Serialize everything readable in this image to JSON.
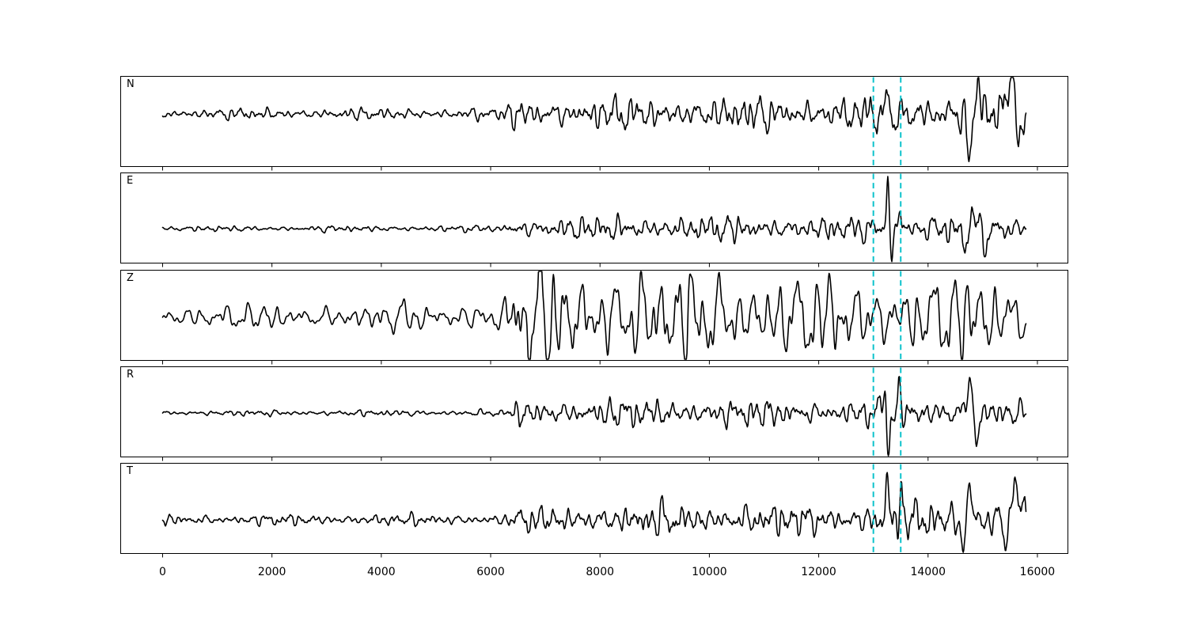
{
  "figure": {
    "background": "#ffffff"
  },
  "chart_data": {
    "type": "line",
    "kind": "seismic-waveform-multipanel",
    "title": "",
    "xlabel": "",
    "ylabel": "",
    "grid": false,
    "legend": null,
    "xlim": [
      -774,
      16565
    ],
    "xticks": [
      0,
      2000,
      4000,
      6000,
      8000,
      10000,
      12000,
      14000,
      16000
    ],
    "xtick_labels": [
      "0",
      "2000",
      "4000",
      "6000",
      "8000",
      "10000",
      "12000",
      "14000",
      "16000"
    ],
    "trace_style": {
      "color": "#000000",
      "width": 1.6,
      "x_start": 0,
      "x_end": 15790,
      "samples": 1500
    },
    "vlines": {
      "x": [
        13000,
        13500
      ],
      "color": "#0cc2cb",
      "dash": [
        7,
        4.6
      ],
      "width": 2
    },
    "amp_units": "px-half-amplitude",
    "noise_profiles": {
      "default": {
        "periods": [
          520,
          380,
          290,
          220,
          170,
          130,
          95,
          48
        ],
        "amps": [
          0.5,
          0.6,
          0.8,
          0.9,
          1.0,
          0.9,
          0.6,
          0.35
        ],
        "am_period": 2300,
        "am_depth": 0.35
      },
      "broad": {
        "periods": [
          650,
          480,
          360,
          280,
          230,
          180,
          130,
          80
        ],
        "amps": [
          0.5,
          0.7,
          0.9,
          1.0,
          1.0,
          0.7,
          0.5,
          0.35
        ],
        "am_period": 2600,
        "am_depth": 0.3
      }
    },
    "panels": [
      {
        "label": "N",
        "seed": 11,
        "profile": "default",
        "center_y": 48,
        "envelope": [
          [
            0,
            4
          ],
          [
            6200,
            4.5
          ],
          [
            6400,
            12
          ],
          [
            8000,
            12
          ],
          [
            10500,
            13
          ],
          [
            12600,
            13
          ],
          [
            13600,
            15
          ],
          [
            14300,
            17
          ],
          [
            15790,
            18
          ]
        ],
        "events": [
          [
            13265,
            39,
            45
          ],
          [
            13335,
            -28,
            45
          ],
          [
            14740,
            -55,
            50
          ],
          [
            14925,
            38,
            45
          ],
          [
            15480,
            26,
            150
          ],
          [
            15700,
            -20,
            70
          ]
        ]
      },
      {
        "label": "E",
        "seed": 23,
        "profile": "default",
        "center_y": 71,
        "envelope": [
          [
            0,
            2
          ],
          [
            6200,
            2.5
          ],
          [
            6400,
            8
          ],
          [
            9000,
            10
          ],
          [
            12600,
            9
          ],
          [
            13600,
            11
          ],
          [
            14400,
            12
          ],
          [
            15790,
            9
          ]
        ],
        "events": [
          [
            13265,
            58,
            32
          ],
          [
            13340,
            -30,
            35
          ],
          [
            13485,
            26,
            30
          ],
          [
            14690,
            -34,
            55
          ],
          [
            14830,
            30,
            60
          ],
          [
            15060,
            -20,
            70
          ]
        ]
      },
      {
        "label": "Z",
        "seed": 37,
        "profile": "broad",
        "center_y": 60,
        "envelope": [
          [
            0,
            9
          ],
          [
            1500,
            10
          ],
          [
            3000,
            10
          ],
          [
            4200,
            11
          ],
          [
            5300,
            12
          ],
          [
            6250,
            14
          ],
          [
            6420,
            44
          ],
          [
            7400,
            44
          ],
          [
            8600,
            40
          ],
          [
            10000,
            38
          ],
          [
            11500,
            34
          ],
          [
            12800,
            30
          ],
          [
            13800,
            33
          ],
          [
            14800,
            36
          ],
          [
            15790,
            26
          ]
        ],
        "events": []
      },
      {
        "label": "R",
        "seed": 53,
        "profile": "default",
        "center_y": 59,
        "envelope": [
          [
            0,
            2
          ],
          [
            6300,
            2.5
          ],
          [
            6500,
            10
          ],
          [
            9000,
            11
          ],
          [
            12700,
            10
          ],
          [
            13700,
            12
          ],
          [
            14500,
            13
          ],
          [
            15790,
            7
          ]
        ],
        "events": [
          [
            13205,
            36,
            40
          ],
          [
            13270,
            -52,
            38
          ],
          [
            13470,
            30,
            32
          ],
          [
            14755,
            45,
            55
          ],
          [
            14890,
            -32,
            55
          ]
        ]
      },
      {
        "label": "T",
        "seed": 71,
        "profile": "default",
        "center_y": 72,
        "envelope": [
          [
            0,
            4
          ],
          [
            6300,
            4.5
          ],
          [
            6500,
            9
          ],
          [
            8500,
            12
          ],
          [
            12700,
            12
          ],
          [
            13800,
            15
          ],
          [
            15100,
            16
          ],
          [
            15790,
            13
          ]
        ],
        "events": [
          [
            13250,
            54,
            30
          ],
          [
            13500,
            46,
            32
          ],
          [
            14640,
            -38,
            45
          ],
          [
            14760,
            48,
            45
          ],
          [
            15420,
            -28,
            60
          ],
          [
            15620,
            38,
            130
          ]
        ]
      }
    ]
  }
}
